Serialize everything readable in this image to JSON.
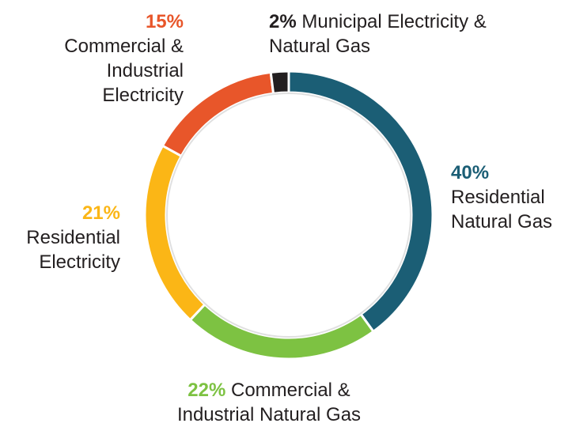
{
  "chart_data": {
    "type": "donut",
    "categories": [
      "Residential Natural Gas",
      "Commercial & Industrial Natural Gas",
      "Residential Electricity",
      "Commercial & Industrial Electricity",
      "Municipal Electricity & Natural Gas"
    ],
    "values": [
      40,
      22,
      21,
      15,
      2
    ],
    "value_labels": [
      "40%",
      "22%",
      "21%",
      "15%",
      "2%"
    ],
    "colors": [
      "#1b5e75",
      "#7dc242",
      "#fbb616",
      "#e8562a",
      "#231f20"
    ]
  }
}
